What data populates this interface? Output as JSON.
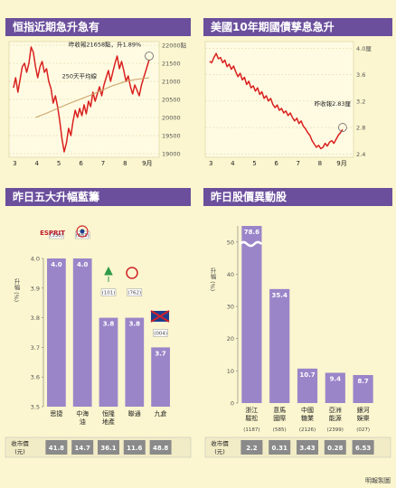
{
  "panels": {
    "hsi": {
      "title": "恒指近期急升急有"
    },
    "ust": {
      "title": "美國10年期國債孳息急升"
    },
    "top5": {
      "title": "昨日五大升幅藍籌"
    },
    "movers": {
      "title": "昨日股價異動股"
    }
  },
  "source_note": "明報製圖",
  "colors": {
    "header": "#6b4f9c",
    "bar": "#9b85c9",
    "line": "#d9211f",
    "background": "#fbf6cf"
  },
  "chart_data": [
    {
      "id": "hsi",
      "type": "line",
      "y_ticks": [
        19000,
        19500,
        20000,
        20500,
        21000,
        21500,
        "22000點"
      ],
      "ylim": [
        18900,
        22100
      ],
      "x_ticks": [
        {
          "label": "3",
          "x": 0.06
        },
        {
          "label": "4",
          "x": 1.06
        },
        {
          "label": "5",
          "x": 2.06
        },
        {
          "label": "6",
          "x": 3.06
        },
        {
          "label": "7",
          "x": 4.06
        },
        {
          "label": "8",
          "x": 5.06
        },
        {
          "label": "9月",
          "x": 6.06
        }
      ],
      "xlim": [
        -0.2,
        6.6
      ],
      "series": [
        {
          "values": [
            [
              0.0,
              20820
            ],
            [
              0.1,
              21100
            ],
            [
              0.2,
              20700
            ],
            [
              0.3,
              21050
            ],
            [
              0.4,
              21400
            ],
            [
              0.5,
              21500
            ],
            [
              0.6,
              21250
            ],
            [
              0.7,
              21500
            ],
            [
              0.8,
              21950
            ],
            [
              0.9,
              21800
            ],
            [
              1.0,
              21400
            ],
            [
              1.1,
              21100
            ],
            [
              1.2,
              21400
            ],
            [
              1.3,
              21550
            ],
            [
              1.4,
              21250
            ],
            [
              1.5,
              21350
            ],
            [
              1.6,
              21000
            ],
            [
              1.7,
              20800
            ],
            [
              1.8,
              20400
            ],
            [
              1.9,
              20600
            ],
            [
              2.0,
              20300
            ],
            [
              2.1,
              19900
            ],
            [
              2.2,
              19400
            ],
            [
              2.3,
              19050
            ],
            [
              2.4,
              19300
            ],
            [
              2.5,
              19700
            ],
            [
              2.6,
              19500
            ],
            [
              2.7,
              19900
            ],
            [
              2.8,
              20200
            ],
            [
              2.9,
              20000
            ],
            [
              3.0,
              20250
            ],
            [
              3.1,
              20050
            ],
            [
              3.2,
              20350
            ],
            [
              3.3,
              20100
            ],
            [
              3.4,
              20450
            ],
            [
              3.5,
              20300
            ],
            [
              3.6,
              20700
            ],
            [
              3.7,
              20450
            ],
            [
              3.8,
              20650
            ],
            [
              3.9,
              20850
            ],
            [
              4.0,
              20600
            ],
            [
              4.1,
              20900
            ],
            [
              4.2,
              21100
            ],
            [
              4.3,
              21300
            ],
            [
              4.4,
              21000
            ],
            [
              4.5,
              21250
            ],
            [
              4.6,
              21500
            ],
            [
              4.7,
              21700
            ],
            [
              4.8,
              21350
            ],
            [
              4.9,
              21550
            ],
            [
              5.0,
              21300
            ],
            [
              5.1,
              21000
            ],
            [
              5.2,
              21150
            ],
            [
              5.3,
              20850
            ],
            [
              5.4,
              20650
            ],
            [
              5.5,
              20900
            ],
            [
              5.6,
              20750
            ],
            [
              5.7,
              20600
            ],
            [
              5.8,
              20900
            ],
            [
              5.9,
              21100
            ],
            [
              6.0,
              21300
            ],
            [
              6.1,
              21500
            ],
            [
              6.15,
              21600
            ]
          ]
        },
        {
          "name": "250天平均線",
          "values": [
            [
              1.0,
              20000
            ],
            [
              1.5,
              20120
            ],
            [
              2.0,
              20250
            ],
            [
              2.5,
              20380
            ],
            [
              3.0,
              20500
            ],
            [
              3.5,
              20620
            ],
            [
              4.0,
              20750
            ],
            [
              4.5,
              20880
            ],
            [
              5.0,
              20980
            ],
            [
              5.5,
              21050
            ],
            [
              6.15,
              21100
            ]
          ]
        }
      ],
      "annotations": [
        {
          "text": "昨收報21658點，升1.89%",
          "x": 2.5,
          "y": 21960
        },
        {
          "text": "250天平均線",
          "x": 2.2,
          "y": 21090
        }
      ],
      "highlight": {
        "x": 6.15,
        "y": 21700
      }
    },
    {
      "id": "ust",
      "type": "line",
      "y_ticks": [
        2.4,
        2.8,
        3.2,
        3.6,
        "4.0厘"
      ],
      "ylim": [
        2.35,
        4.1
      ],
      "x_ticks": [
        {
          "label": "3",
          "x": 0.06
        },
        {
          "label": "4",
          "x": 1.06
        },
        {
          "label": "5",
          "x": 2.06
        },
        {
          "label": "6",
          "x": 3.06
        },
        {
          "label": "7",
          "x": 4.06
        },
        {
          "label": "8",
          "x": 5.06
        },
        {
          "label": "9月",
          "x": 6.06
        }
      ],
      "xlim": [
        -0.2,
        6.6
      ],
      "series": [
        {
          "values": [
            [
              0.0,
              3.8
            ],
            [
              0.1,
              3.78
            ],
            [
              0.2,
              3.86
            ],
            [
              0.3,
              3.92
            ],
            [
              0.4,
              3.84
            ],
            [
              0.5,
              3.86
            ],
            [
              0.6,
              3.78
            ],
            [
              0.7,
              3.82
            ],
            [
              0.8,
              3.72
            ],
            [
              0.9,
              3.76
            ],
            [
              1.0,
              3.68
            ],
            [
              1.1,
              3.73
            ],
            [
              1.2,
              3.64
            ],
            [
              1.3,
              3.57
            ],
            [
              1.4,
              3.62
            ],
            [
              1.5,
              3.52
            ],
            [
              1.6,
              3.56
            ],
            [
              1.7,
              3.45
            ],
            [
              1.8,
              3.5
            ],
            [
              1.9,
              3.4
            ],
            [
              2.0,
              3.43
            ],
            [
              2.1,
              3.35
            ],
            [
              2.2,
              3.4
            ],
            [
              2.3,
              3.3
            ],
            [
              2.4,
              3.34
            ],
            [
              2.5,
              3.24
            ],
            [
              2.6,
              3.28
            ],
            [
              2.7,
              3.2
            ],
            [
              2.8,
              3.24
            ],
            [
              2.9,
              3.15
            ],
            [
              3.0,
              3.1
            ],
            [
              3.1,
              3.14
            ],
            [
              3.2,
              3.06
            ],
            [
              3.3,
              3.09
            ],
            [
              3.4,
              3.02
            ],
            [
              3.5,
              3.05
            ],
            [
              3.6,
              2.98
            ],
            [
              3.7,
              3.02
            ],
            [
              3.8,
              2.95
            ],
            [
              3.9,
              2.9
            ],
            [
              4.0,
              2.94
            ],
            [
              4.1,
              2.86
            ],
            [
              4.2,
              2.9
            ],
            [
              4.3,
              2.82
            ],
            [
              4.4,
              2.78
            ],
            [
              4.5,
              2.72
            ],
            [
              4.6,
              2.68
            ],
            [
              4.7,
              2.6
            ],
            [
              4.8,
              2.55
            ],
            [
              4.9,
              2.5
            ],
            [
              5.0,
              2.53
            ],
            [
              5.1,
              2.48
            ],
            [
              5.2,
              2.5
            ],
            [
              5.3,
              2.56
            ],
            [
              5.4,
              2.52
            ],
            [
              5.5,
              2.58
            ],
            [
              5.6,
              2.6
            ],
            [
              5.7,
              2.56
            ],
            [
              5.8,
              2.62
            ],
            [
              5.9,
              2.68
            ],
            [
              6.0,
              2.72
            ],
            [
              6.1,
              2.77
            ]
          ]
        }
      ],
      "annotations": [
        {
          "text": "昨收報2.83厘",
          "x": 4.8,
          "y": 3.13
        }
      ],
      "highlight": {
        "x": 6.1,
        "y": 2.8
      }
    },
    {
      "id": "top5",
      "type": "bar",
      "ylabel": "升幅 (%)",
      "y_ticks": [
        3.5,
        3.6,
        3.7,
        3.8,
        3.9,
        4.0
      ],
      "ylim": [
        3.5,
        4.0
      ],
      "categories": [
        "思捷",
        "中海油",
        "恒隆地產",
        "聯通",
        "九倉"
      ],
      "values": [
        4.0,
        4.0,
        3.8,
        3.8,
        3.7
      ],
      "value_labels": [
        "4.0",
        "4.0",
        "3.8",
        "3.8",
        "3.7"
      ],
      "codes": [
        "(330)",
        "(883)",
        "(101)",
        "(762)",
        "(004)"
      ],
      "logo_text": "ESPRIT",
      "table": {
        "header": "收市價 (元)",
        "values": [
          "41.8",
          "14.7",
          "36.1",
          "11.6",
          "48.8"
        ]
      }
    },
    {
      "id": "movers",
      "type": "bar",
      "ylabel": "升幅 (%)",
      "y_ticks": [
        0,
        10,
        20,
        30,
        40,
        50
      ],
      "ylim": [
        0,
        55
      ],
      "break": true,
      "categories": [
        "浙江駿松",
        "意馬國際",
        "中國糖業",
        "亞洲能源",
        "銀河娛樂"
      ],
      "values": [
        78.6,
        35.4,
        10.7,
        9.4,
        8.7
      ],
      "display_values": [
        55,
        35.4,
        10.7,
        9.4,
        8.7
      ],
      "value_labels": [
        "78.6",
        "35.4",
        "10.7",
        "9.4",
        "8.7"
      ],
      "codes": [
        "(1187)",
        "(585)",
        "(2126)",
        "(2399)",
        "(027)"
      ],
      "table": {
        "header": "收市價 (元)",
        "values": [
          "2.2",
          "0.31",
          "3.43",
          "0.28",
          "6.53"
        ]
      }
    }
  ]
}
